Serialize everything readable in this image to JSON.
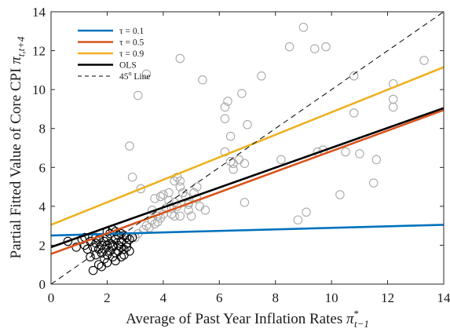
{
  "chart_data": {
    "type": "scatter",
    "xlabel": {
      "text": "Average of Past Year Inflation Rates ",
      "sym": "π",
      "sup": "*",
      "sub": "t−1"
    },
    "ylabel": {
      "text": "Partial Fitted Value of Core CPI ",
      "sym": "π",
      "sub": "t,t+4"
    },
    "xlim": [
      0,
      14
    ],
    "ylim": [
      0,
      14
    ],
    "xticks": [
      0,
      2,
      4,
      6,
      8,
      10,
      12,
      14
    ],
    "yticks": [
      0,
      2,
      4,
      6,
      8,
      10,
      12,
      14
    ],
    "grid": false,
    "legend_position": "top-left",
    "lines": [
      {
        "name": "τ = 0.1",
        "style": "solid",
        "color": "#0072BD",
        "x": [
          0,
          14
        ],
        "y": [
          2.5,
          3.05
        ]
      },
      {
        "name": "τ = 0.5",
        "style": "solid",
        "color": "#D95319",
        "x": [
          0,
          14
        ],
        "y": [
          1.55,
          8.95
        ]
      },
      {
        "name": "τ = 0.9",
        "style": "solid",
        "color": "#EDB120",
        "x": [
          0,
          14
        ],
        "y": [
          3.05,
          11.15
        ]
      },
      {
        "name": "OLS",
        "style": "solid",
        "color": "#000000",
        "x": [
          0,
          14
        ],
        "y": [
          1.9,
          9.05
        ]
      },
      {
        "name": "45° Line",
        "name_base": "45",
        "name_sup": "o",
        "name_tail": " Line",
        "style": "dashed",
        "color": "#000000",
        "x": [
          0,
          14
        ],
        "y": [
          0,
          14
        ]
      }
    ],
    "series": [
      {
        "group": "gray",
        "color": "#a8a8a8",
        "points": [
          [
            2.9,
            5.5
          ],
          [
            3.1,
            9.7
          ],
          [
            3.2,
            4.9
          ],
          [
            3.4,
            10.8
          ],
          [
            3.6,
            3.8
          ],
          [
            3.7,
            4.4
          ],
          [
            3.8,
            3.5
          ],
          [
            3.8,
            3.2
          ],
          [
            3.9,
            4.5
          ],
          [
            4.0,
            4.6
          ],
          [
            4.2,
            4.3
          ],
          [
            4.3,
            3.9
          ],
          [
            4.3,
            3.6
          ],
          [
            4.4,
            5.3
          ],
          [
            4.4,
            3.5
          ],
          [
            4.5,
            5.5
          ],
          [
            4.5,
            4.0
          ],
          [
            4.6,
            5.3
          ],
          [
            4.6,
            5.0
          ],
          [
            4.6,
            3.5
          ],
          [
            4.7,
            4.7
          ],
          [
            4.8,
            4.5
          ],
          [
            4.9,
            4.2
          ],
          [
            4.9,
            3.8
          ],
          [
            4.9,
            4.1
          ],
          [
            5.0,
            3.5
          ],
          [
            5.1,
            4.7
          ],
          [
            5.2,
            5.0
          ],
          [
            5.2,
            4.4
          ],
          [
            5.3,
            4.0
          ],
          [
            5.5,
            3.8
          ],
          [
            5.4,
            10.5
          ],
          [
            4.6,
            11.6
          ],
          [
            6.2,
            9.1
          ],
          [
            6.3,
            9.4
          ],
          [
            6.2,
            8.5
          ],
          [
            6.2,
            6.8
          ],
          [
            6.4,
            6.3
          ],
          [
            6.4,
            7.6
          ],
          [
            6.5,
            6.2
          ],
          [
            6.5,
            5.9
          ],
          [
            6.7,
            6.4
          ],
          [
            6.8,
            9.8
          ],
          [
            6.9,
            6.2
          ],
          [
            6.9,
            4.2
          ],
          [
            7.0,
            8.2
          ],
          [
            7.5,
            10.7
          ],
          [
            8.2,
            6.4
          ],
          [
            8.5,
            12.2
          ],
          [
            8.8,
            3.3
          ],
          [
            9.0,
            13.2
          ],
          [
            9.1,
            3.7
          ],
          [
            9.4,
            12.1
          ],
          [
            9.5,
            6.8
          ],
          [
            9.7,
            6.9
          ],
          [
            9.8,
            12.2
          ],
          [
            10.3,
            4.6
          ],
          [
            10.5,
            6.8
          ],
          [
            10.8,
            10.7
          ],
          [
            10.8,
            8.8
          ],
          [
            11.0,
            6.7
          ],
          [
            11.5,
            5.2
          ],
          [
            11.6,
            6.4
          ],
          [
            12.2,
            10.3
          ],
          [
            12.2,
            9.5
          ],
          [
            12.2,
            9.1
          ],
          [
            13.3,
            11.5
          ],
          [
            3.5,
            2.9
          ],
          [
            3.1,
            2.6
          ],
          [
            2.8,
            7.1
          ],
          [
            3.4,
            3.0
          ],
          [
            3.0,
            2.4
          ],
          [
            3.7,
            3.1
          ],
          [
            4.1,
            3.9
          ],
          [
            3.9,
            3.4
          ],
          [
            3.3,
            2.8
          ],
          [
            4.2,
            4.7
          ],
          [
            4.0,
            3.6
          ],
          [
            3.6,
            3.3
          ],
          [
            4.4,
            4.2
          ]
        ]
      },
      {
        "group": "black",
        "color": "#000000",
        "points": [
          [
            0.6,
            2.2
          ],
          [
            0.9,
            1.9
          ],
          [
            1.1,
            2.3
          ],
          [
            1.2,
            2.0
          ],
          [
            1.3,
            1.8
          ],
          [
            1.4,
            2.2
          ],
          [
            1.4,
            1.4
          ],
          [
            1.5,
            0.7
          ],
          [
            1.5,
            1.9
          ],
          [
            1.6,
            2.1
          ],
          [
            1.6,
            1.5
          ],
          [
            1.7,
            1.0
          ],
          [
            1.7,
            1.8
          ],
          [
            1.7,
            2.3
          ],
          [
            1.8,
            0.9
          ],
          [
            1.8,
            1.6
          ],
          [
            1.8,
            2.0
          ],
          [
            1.9,
            1.3
          ],
          [
            1.9,
            2.2
          ],
          [
            1.9,
            1.8
          ],
          [
            2.0,
            1.5
          ],
          [
            2.0,
            2.0
          ],
          [
            2.0,
            2.4
          ],
          [
            2.0,
            1.1
          ],
          [
            2.1,
            1.7
          ],
          [
            2.1,
            2.1
          ],
          [
            2.1,
            2.6
          ],
          [
            2.2,
            1.4
          ],
          [
            2.2,
            2.0
          ],
          [
            2.2,
            1.9
          ],
          [
            2.2,
            2.8
          ],
          [
            2.3,
            1.6
          ],
          [
            2.3,
            2.3
          ],
          [
            2.3,
            1.2
          ],
          [
            2.4,
            2.0
          ],
          [
            2.4,
            1.7
          ],
          [
            2.4,
            2.5
          ],
          [
            2.5,
            1.9
          ],
          [
            2.5,
            1.4
          ],
          [
            2.5,
            2.2
          ],
          [
            2.6,
            2.5
          ],
          [
            2.6,
            1.8
          ],
          [
            2.6,
            1.5
          ],
          [
            2.7,
            2.1
          ],
          [
            2.7,
            2.4
          ],
          [
            2.7,
            1.9
          ],
          [
            2.8,
            2.3
          ],
          [
            2.8,
            1.7
          ],
          [
            1.2,
            2.4
          ],
          [
            2.0,
            2.7
          ],
          [
            2.3,
            2.7
          ],
          [
            2.5,
            2.6
          ],
          [
            1.6,
            2.4
          ],
          [
            2.9,
            2.4
          ]
        ]
      }
    ]
  }
}
